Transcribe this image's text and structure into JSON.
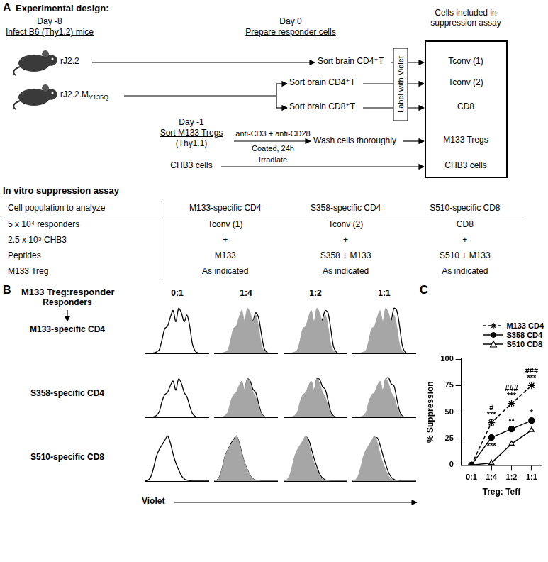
{
  "panel_a": {
    "letter": "A",
    "title": "Experimental design:",
    "infect": {
      "day": "Day -8",
      "label": "Infect B6 (Thy1.2) mice"
    },
    "mice": [
      {
        "virus": "rJ2.2"
      },
      {
        "virus": "rJ2.2.M",
        "virus_sub": "Y135Q"
      }
    ],
    "prepare": {
      "day": "Day 0",
      "label": "Prepare responder cells"
    },
    "sorts": [
      "Sort brain CD4⁺T",
      "Sort brain CD4⁺T",
      "Sort brain CD8⁺T"
    ],
    "label_step": "Label with Violet",
    "box_title": "Cells included in suppression assay",
    "box_items": [
      "Tconv (1)",
      "Tconv (2)",
      "CD8",
      "M133 Tregs",
      "CHB3 cells"
    ],
    "treg": {
      "day": "Day -1",
      "label": "Sort M133 Tregs",
      "note": "(Thy1.1)",
      "stim_top": "anti-CD3 + anti-CD28",
      "stim_bottom": "Coated, 24h",
      "wash": "Wash cells thoroughly"
    },
    "chb3": {
      "label": "CHB3 cells",
      "step": "Irradiate"
    },
    "assay_title": "In vitro suppression assay",
    "table": {
      "header": [
        "Cell population to analyze",
        "M133-specific CD4",
        "S358-specific CD4",
        "S510-specific CD8"
      ],
      "rows": [
        [
          "5 x 10⁴ responders",
          "Tconv (1)",
          "Tconv (2)",
          "CD8"
        ],
        [
          "2.5 x 10⁵ CHB3",
          "+",
          "+",
          "+"
        ],
        [
          "Peptides",
          "M133",
          "S358 + M133",
          "S510 + M133"
        ],
        [
          "M133 Treg",
          "As indicated",
          "As indicated",
          "As indicated"
        ]
      ]
    }
  },
  "panel_b": {
    "letter": "B",
    "title": "M133 Treg:responder",
    "ratios": [
      "0:1",
      "1:4",
      "1:2",
      "1:1"
    ],
    "row_header": "Responders",
    "x_label": "Violet",
    "ylim": [
      0,
      110
    ],
    "fill_color": "#a6a6a6",
    "line_color": "#000000",
    "rows": [
      {
        "label": "M133-specific CD4",
        "no_treg": [
          0,
          0,
          0,
          1,
          3,
          8,
          30,
          55,
          60,
          80,
          95,
          70,
          100,
          90,
          70,
          85,
          60,
          20,
          5,
          1,
          0,
          0,
          0,
          0
        ],
        "with_treg": [
          null,
          [
            0,
            0,
            0,
            0,
            1,
            4,
            12,
            25,
            32,
            45,
            55,
            50,
            65,
            70,
            72,
            90,
            80,
            45,
            12,
            2,
            0,
            0,
            0,
            0
          ],
          [
            0,
            0,
            0,
            0,
            0,
            2,
            6,
            14,
            20,
            30,
            40,
            42,
            55,
            65,
            75,
            95,
            90,
            55,
            15,
            3,
            0,
            0,
            0,
            0
          ],
          [
            0,
            0,
            0,
            0,
            0,
            1,
            3,
            8,
            12,
            18,
            26,
            30,
            42,
            55,
            70,
            100,
            95,
            62,
            18,
            3,
            0,
            0,
            0,
            0
          ]
        ]
      },
      {
        "label": "S358-specific CD4",
        "no_treg": [
          0,
          0,
          0,
          1,
          4,
          12,
          35,
          50,
          55,
          70,
          80,
          60,
          85,
          75,
          55,
          45,
          25,
          8,
          2,
          0,
          0,
          0,
          0,
          0
        ],
        "with_treg": [
          null,
          [
            0,
            0,
            0,
            0,
            2,
            8,
            24,
            38,
            45,
            60,
            72,
            58,
            85,
            80,
            62,
            55,
            32,
            10,
            2,
            0,
            0,
            0,
            0,
            0
          ],
          [
            0,
            0,
            0,
            0,
            1,
            6,
            18,
            30,
            38,
            52,
            66,
            56,
            85,
            84,
            68,
            62,
            38,
            12,
            3,
            0,
            0,
            0,
            0,
            0
          ],
          [
            0,
            0,
            0,
            0,
            1,
            4,
            14,
            24,
            32,
            46,
            60,
            54,
            84,
            88,
            74,
            70,
            42,
            14,
            3,
            0,
            0,
            0,
            0,
            0
          ]
        ]
      },
      {
        "label": "S510-specific CD8",
        "no_treg": [
          0,
          2,
          10,
          30,
          55,
          70,
          80,
          90,
          100,
          85,
          60,
          40,
          25,
          12,
          5,
          2,
          1,
          0,
          0,
          0,
          0,
          0,
          0,
          0
        ],
        "with_treg": [
          null,
          [
            0,
            2,
            10,
            30,
            56,
            70,
            82,
            92,
            100,
            86,
            62,
            40,
            25,
            12,
            5,
            2,
            1,
            0,
            0,
            0,
            0,
            0,
            0,
            0
          ],
          [
            0,
            1,
            6,
            20,
            42,
            60,
            72,
            86,
            98,
            92,
            72,
            50,
            32,
            16,
            7,
            3,
            1,
            0,
            0,
            0,
            0,
            0,
            0,
            0
          ],
          [
            0,
            0,
            4,
            14,
            32,
            50,
            64,
            80,
            95,
            96,
            80,
            58,
            38,
            20,
            9,
            4,
            1,
            0,
            0,
            0,
            0,
            0,
            0,
            0
          ]
        ]
      }
    ]
  },
  "chart_data": {
    "type": "line",
    "panel_label": "C",
    "categories": [
      "0:1",
      "1:4",
      "1:2",
      "1:1"
    ],
    "x_label": "Treg: Teff",
    "y_label": "% Suppression",
    "ylim": [
      0,
      100
    ],
    "yticks": [
      0,
      25,
      50,
      75,
      100
    ],
    "grid": false,
    "legend": "upper right",
    "series": [
      {
        "name": "M133 CD4",
        "color": "#000000",
        "marker": "star",
        "line_style": "dashed",
        "values": [
          0,
          40,
          58,
          75
        ],
        "errors": [
          0,
          3,
          1,
          1
        ]
      },
      {
        "name": "S358 CD4",
        "color": "#000000",
        "marker": "circle",
        "line_style": "solid",
        "values": [
          0,
          26,
          34,
          42
        ]
      },
      {
        "name": "S510 CD8",
        "color": "#000000",
        "marker": "open_triangle",
        "line_style": "solid",
        "values": [
          0,
          2,
          20,
          33
        ]
      }
    ],
    "annotations": [
      {
        "series": "M133 CD4",
        "category": "1:4",
        "text": "***",
        "position": "above"
      },
      {
        "series": "M133 CD4",
        "category": "1:4",
        "text": "#",
        "position": "above"
      },
      {
        "series": "S358 CD4",
        "category": "1:4",
        "text": "***",
        "position": "below"
      },
      {
        "series": "M133 CD4",
        "category": "1:2",
        "text": "***",
        "position": "above"
      },
      {
        "series": "M133 CD4",
        "category": "1:2",
        "text": "###",
        "position": "above"
      },
      {
        "series": "S358 CD4",
        "category": "1:2",
        "text": "**",
        "position": "above"
      },
      {
        "series": "M133 CD4",
        "category": "1:1",
        "text": "***",
        "position": "above"
      },
      {
        "series": "M133 CD4",
        "category": "1:1",
        "text": "###",
        "position": "above"
      },
      {
        "series": "S358 CD4",
        "category": "1:1",
        "text": "*",
        "position": "above"
      }
    ]
  }
}
